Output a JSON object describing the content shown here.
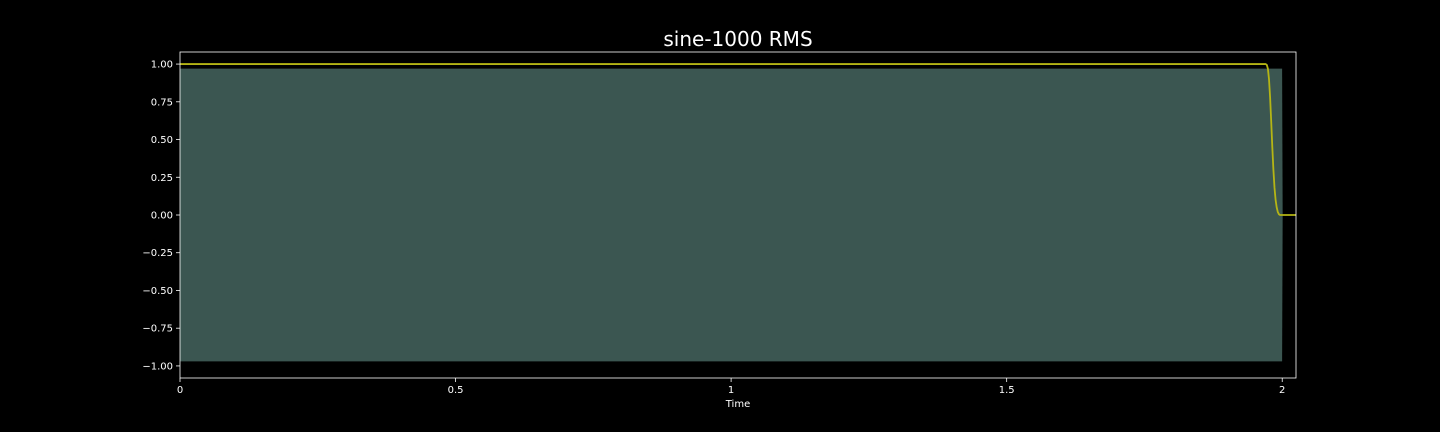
{
  "chart_data": {
    "type": "area",
    "title": "sine-1000 RMS",
    "xlabel": "Time",
    "ylabel": "",
    "xlim": [
      0,
      2.025
    ],
    "ylim": [
      -1.08,
      1.08
    ],
    "x_ticks": [
      0,
      0.5,
      1,
      1.5,
      2
    ],
    "x_tick_labels": [
      "0",
      "0.5",
      "1",
      "1.5",
      "2"
    ],
    "y_ticks": [
      1.0,
      0.75,
      0.5,
      0.25,
      0.0,
      -0.25,
      -0.5,
      -0.75,
      -1.0
    ],
    "y_tick_labels": [
      "1.00",
      "0.75",
      "0.50",
      "0.25",
      "0.00",
      "−0.25",
      "−0.50",
      "−0.75",
      "−1.00"
    ],
    "grid": false,
    "background": "#000000",
    "series": [
      {
        "kind": "waveform-envelope",
        "color": "#3b5651",
        "x": [
          0,
          1.9998,
          2.0008
        ],
        "upper": [
          0.97,
          0.97,
          0.0
        ],
        "lower": [
          -0.97,
          -0.97,
          0.0
        ]
      },
      {
        "kind": "line",
        "color": "#b5b515",
        "x": [
          0,
          1.97,
          1.972,
          1.974,
          1.976,
          1.978,
          1.98,
          1.982,
          1.984,
          1.986,
          1.988,
          1.99,
          1.992,
          1.994,
          1.996,
          1.998,
          2.0,
          2.025
        ],
        "y": [
          1.0,
          1.0,
          0.995,
          0.97,
          0.9,
          0.78,
          0.62,
          0.45,
          0.3,
          0.18,
          0.1,
          0.05,
          0.02,
          0.005,
          0.0,
          0.0,
          0.0,
          0.0
        ]
      }
    ]
  }
}
